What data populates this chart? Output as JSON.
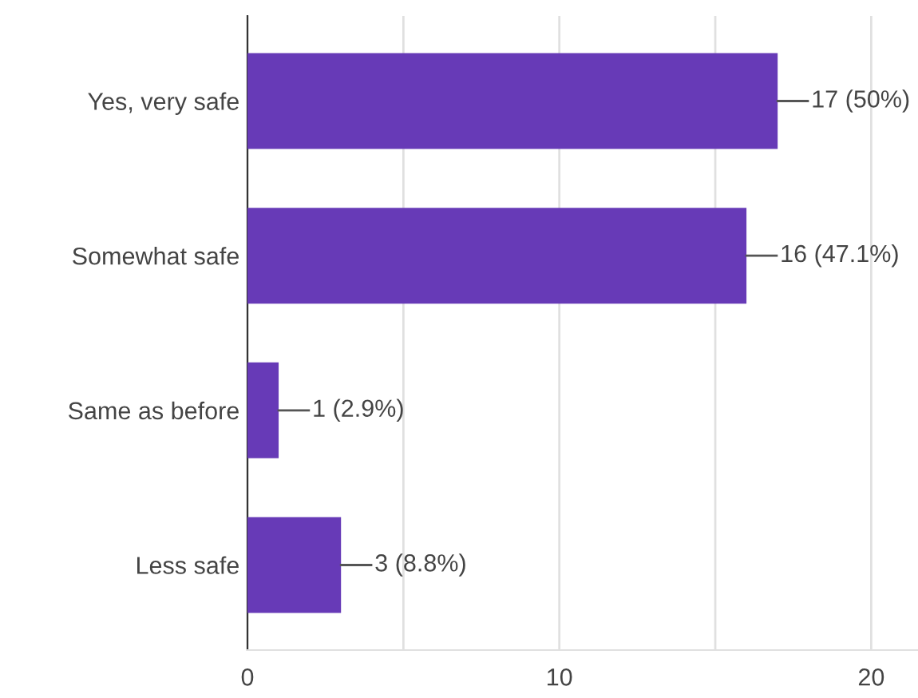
{
  "chart_data": {
    "type": "bar",
    "orientation": "horizontal",
    "categories": [
      "Yes, very safe",
      "Somewhat safe",
      "Same as before",
      "Less safe"
    ],
    "values": [
      17,
      16,
      1,
      3
    ],
    "value_labels": [
      "17 (50%)",
      "16 (47.1%)",
      "1 (2.9%)",
      "3 (8.8%)"
    ],
    "color": "#673ab7",
    "xlim": [
      0,
      21.5
    ],
    "xticks": [
      0,
      {
        "value": 5,
        "label": null
      },
      10,
      {
        "value": 15,
        "label": null
      },
      20
    ],
    "grid": "x",
    "legend": false
  }
}
